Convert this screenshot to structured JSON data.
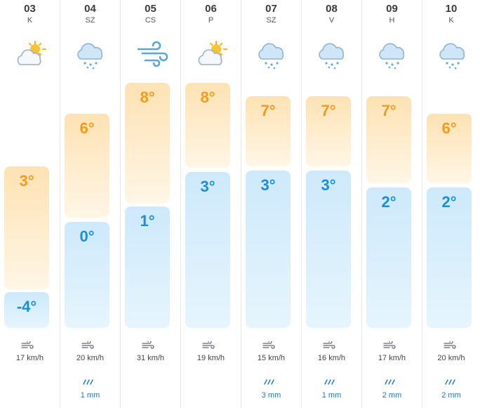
{
  "days": [
    {
      "date": "03",
      "dow": "K",
      "icon": "partly-sunny-icon",
      "high": "3°",
      "low": "-4°",
      "wind": "17 km/h",
      "rain": ""
    },
    {
      "date": "04",
      "dow": "SZ",
      "icon": "rain-cloud-icon",
      "high": "6°",
      "low": "0°",
      "wind": "20 km/h",
      "rain": "1 mm"
    },
    {
      "date": "05",
      "dow": "CS",
      "icon": "wind-icon",
      "high": "8°",
      "low": "1°",
      "wind": "31 km/h",
      "rain": ""
    },
    {
      "date": "06",
      "dow": "P",
      "icon": "partly-sunny-icon",
      "high": "8°",
      "low": "3°",
      "wind": "19 km/h",
      "rain": ""
    },
    {
      "date": "07",
      "dow": "SZ",
      "icon": "rain-cloud-icon",
      "high": "7°",
      "low": "3°",
      "wind": "15 km/h",
      "rain": "3 mm"
    },
    {
      "date": "08",
      "dow": "V",
      "icon": "rain-cloud-icon",
      "high": "7°",
      "low": "3°",
      "wind": "16 km/h",
      "rain": "1 mm"
    },
    {
      "date": "09",
      "dow": "H",
      "icon": "rain-cloud-icon",
      "high": "7°",
      "low": "2°",
      "wind": "17 km/h",
      "rain": "2 mm"
    },
    {
      "date": "10",
      "dow": "K",
      "icon": "rain-cloud-icon",
      "high": "6°",
      "low": "2°",
      "wind": "20 km/h",
      "rain": "2 mm"
    }
  ],
  "colors": {
    "high": "#f59a1b",
    "low": "#1b8fd6",
    "rain": "#1b7bc2"
  }
}
